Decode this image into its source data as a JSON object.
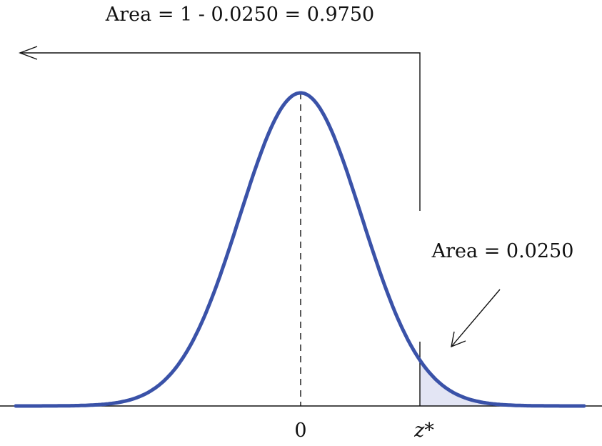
{
  "diagram": {
    "top_label": "Area = 1 - 0.0250 = 0.9750",
    "tail_label": "Area = 0.0250",
    "center_tick": "0",
    "critical_value": "z*"
  },
  "chart_data": {
    "type": "area",
    "distribution": "standard normal",
    "mean": 0,
    "tail_area": 0.025,
    "left_area": 0.975,
    "z_star": 1.96,
    "x_ticks": [
      "0",
      "z*"
    ],
    "colors": {
      "curve": "#3a52a8",
      "tail_fill": "#e3e5f4",
      "lines": "#111111"
    }
  }
}
